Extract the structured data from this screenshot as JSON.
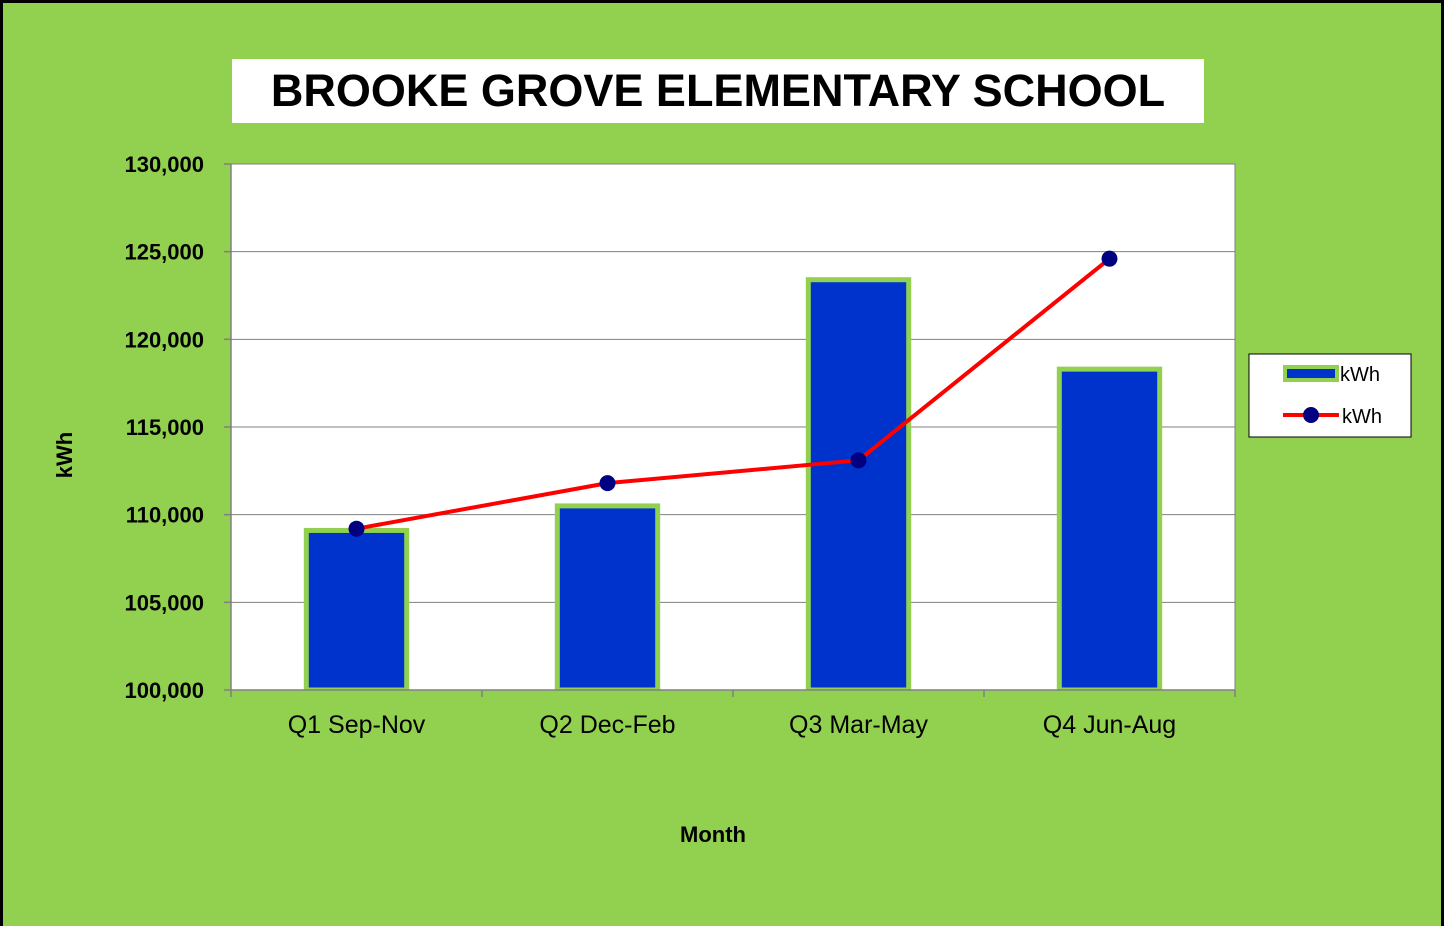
{
  "chart_data": {
    "type": "bar",
    "title": "BROOKE GROVE ELEMENTARY SCHOOL",
    "xlabel": "Month",
    "ylabel": "kWh",
    "categories": [
      "Q1 Sep-Nov",
      "Q2 Dec-Feb",
      "Q3 Mar-May",
      "Q4 Jun-Aug"
    ],
    "ylim": [
      100000,
      130000
    ],
    "yticks": [
      100000,
      105000,
      110000,
      115000,
      120000,
      125000,
      130000
    ],
    "ytick_labels": [
      "100,000",
      "105,000",
      "110,000",
      "115,000",
      "120,000",
      "125,000",
      "130,000"
    ],
    "grid": true,
    "legend_position": "right",
    "series": [
      {
        "name": "kWh",
        "type": "bar",
        "values": [
          109100,
          110500,
          123400,
          118300
        ],
        "color": "#0033cc",
        "edge_color": "#92d050"
      },
      {
        "name": "kWh",
        "type": "line",
        "values": [
          109200,
          111800,
          113100,
          124600
        ],
        "color": "#ff0000",
        "marker_color": "#000080"
      }
    ]
  },
  "colors": {
    "background": "#92d050",
    "plot_area": "#ffffff",
    "gridline": "#808080"
  }
}
